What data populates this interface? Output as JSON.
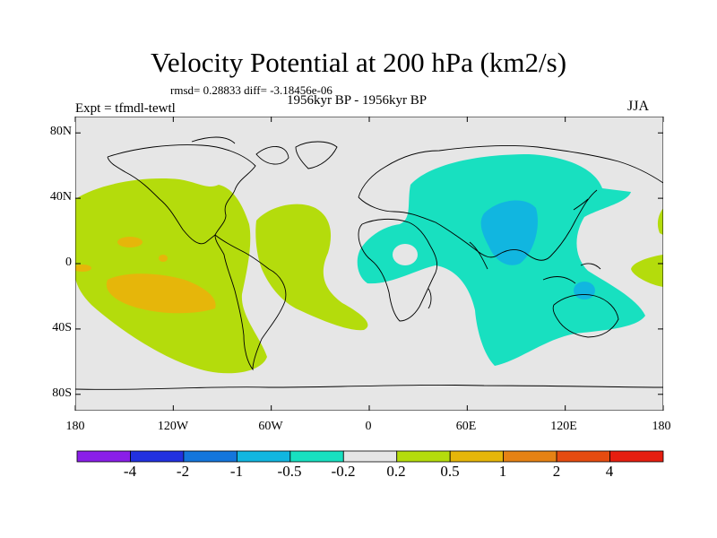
{
  "title": "Velocity Potential at 200 hPa (km2/s)",
  "stats": "rmsd= 0.28833 diff= -3.18456e-06",
  "period": "1956kyr BP - 1956kyr BP",
  "experiment": "Expt = tfmdl-tewtl",
  "season": "JJA",
  "map": {
    "projection": "cylindrical-equidistant",
    "lon_range": [
      -180,
      180
    ],
    "lat_range": [
      -90,
      90
    ],
    "y_ticks": [
      "80N",
      "40N",
      "0",
      "40S",
      "80S"
    ],
    "x_ticks": [
      "180",
      "120W",
      "60W",
      "0",
      "60E",
      "120E",
      "180"
    ]
  },
  "colorbar": {
    "colors": [
      "#8a1ee8",
      "#2231e0",
      "#1476dc",
      "#11b6e0",
      "#18e0c0",
      "#e6e6e6",
      "#b4dc0c",
      "#e6b60a",
      "#e68214",
      "#e64c10",
      "#e61e10"
    ],
    "labels": [
      "-4",
      "-2",
      "-1",
      "-0.5",
      "-0.2",
      "0.2",
      "0.5",
      "1",
      "2",
      "4"
    ]
  }
}
